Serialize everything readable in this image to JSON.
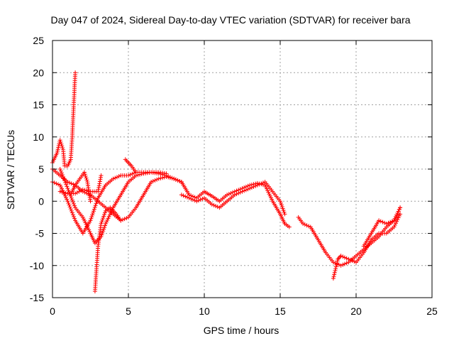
{
  "chart_data": {
    "type": "scatter",
    "title": "Day 047 of 2024, Sidereal Day-to-day VTEC variation (SDTVAR) for receiver bara",
    "xlabel": "GPS time / hours",
    "ylabel": "SDTVAR / TECUs",
    "xlim": [
      0,
      25
    ],
    "ylim": [
      -15,
      25
    ],
    "xticks": [
      0,
      5,
      10,
      15,
      20,
      25
    ],
    "yticks": [
      -15,
      -10,
      -5,
      0,
      5,
      10,
      15,
      20,
      25
    ],
    "xtick_labels": [
      "0",
      "5",
      "10",
      "15",
      "20",
      "25"
    ],
    "ytick_labels": [
      "-15",
      "-10",
      "-5",
      "0",
      "5",
      "10",
      "15",
      "20",
      "25"
    ],
    "grid": true,
    "marker": "+",
    "marker_color": "#ff0000",
    "series": [
      {
        "name": "tracks",
        "segments": [
          [
            [
              0,
              6
            ],
            [
              0.3,
              7.5
            ],
            [
              0.5,
              9.5
            ],
            [
              0.7,
              8
            ],
            [
              0.8,
              5.5
            ],
            [
              1.0,
              5.5
            ],
            [
              1.2,
              6.5
            ],
            [
              1.3,
              10
            ],
            [
              1.4,
              15
            ],
            [
              1.5,
              20
            ]
          ],
          [
            [
              0,
              5
            ],
            [
              0.5,
              4
            ],
            [
              1,
              3
            ],
            [
              1.5,
              2.5
            ],
            [
              2,
              1.5
            ],
            [
              2.5,
              1
            ],
            [
              3,
              0
            ],
            [
              3.5,
              -1
            ],
            [
              4,
              -2
            ],
            [
              4.5,
              -3
            ],
            [
              5,
              -2.5
            ],
            [
              5.5,
              -1
            ],
            [
              6,
              1
            ],
            [
              6.5,
              3
            ],
            [
              7,
              3.5
            ],
            [
              7.5,
              3.8
            ],
            [
              8,
              3.5
            ],
            [
              8.5,
              3
            ]
          ],
          [
            [
              0,
              3
            ],
            [
              0.5,
              2.5
            ],
            [
              1,
              0
            ],
            [
              1.5,
              -3
            ],
            [
              2,
              -5
            ],
            [
              2.5,
              -3
            ],
            [
              3,
              0.5
            ],
            [
              3.5,
              2.5
            ],
            [
              4,
              3.5
            ],
            [
              4.5,
              4
            ],
            [
              5,
              4
            ],
            [
              5.5,
              4.5
            ],
            [
              6,
              4.5
            ],
            [
              6.5,
              4.5
            ],
            [
              7,
              4.3
            ],
            [
              7.5,
              4
            ],
            [
              8,
              3.5
            ],
            [
              8.5,
              3
            ]
          ],
          [
            [
              0.5,
              5
            ],
            [
              1,
              2
            ],
            [
              1.5,
              -1
            ],
            [
              2,
              -2.5
            ],
            [
              2.5,
              -5
            ],
            [
              2.8,
              -6.5
            ],
            [
              3.2,
              -5.5
            ],
            [
              3.5,
              -3.5
            ],
            [
              4,
              -1
            ],
            [
              4.5,
              1
            ],
            [
              5,
              3
            ],
            [
              5.5,
              4
            ],
            [
              6,
              4.3
            ],
            [
              6.5,
              4.5
            ],
            [
              7,
              4.5
            ],
            [
              7.5,
              4.3
            ]
          ],
          [
            [
              0.5,
              1.5
            ],
            [
              1,
              1.2
            ],
            [
              1.5,
              1.2
            ],
            [
              2,
              1.8
            ],
            [
              2.5,
              1.5
            ],
            [
              3,
              1.5
            ],
            [
              3.2,
              4
            ]
          ],
          [
            [
              1.3,
              1.5
            ],
            [
              1.5,
              2.5
            ],
            [
              1.8,
              3.5
            ],
            [
              2.1,
              4.5
            ],
            [
              2.3,
              3
            ],
            [
              2.5,
              0
            ]
          ],
          [
            [
              4.5,
              -3
            ],
            [
              4.2,
              -2
            ],
            [
              3.8,
              -1
            ],
            [
              3.5,
              -1.5
            ],
            [
              3.2,
              -3.5
            ],
            [
              3,
              -7
            ],
            [
              2.8,
              -14
            ]
          ],
          [
            [
              4.8,
              6.5
            ],
            [
              5.2,
              5.5
            ],
            [
              5.5,
              4.5
            ]
          ],
          [
            [
              8.5,
              3
            ],
            [
              9,
              1
            ],
            [
              9.5,
              0.5
            ],
            [
              10,
              1.5
            ],
            [
              10.5,
              0.8
            ],
            [
              11,
              0
            ],
            [
              11.5,
              1
            ],
            [
              12,
              1.5
            ],
            [
              12.5,
              2
            ],
            [
              13,
              2.5
            ],
            [
              13.5,
              2.8
            ],
            [
              14,
              2.5
            ],
            [
              14.5,
              0
            ],
            [
              15,
              -2
            ],
            [
              15.3,
              -3.5
            ],
            [
              15.6,
              -4
            ]
          ],
          [
            [
              8.5,
              1
            ],
            [
              9,
              0.5
            ],
            [
              9.5,
              0
            ],
            [
              10,
              0.5
            ],
            [
              10.5,
              -0.5
            ],
            [
              11,
              -1
            ],
            [
              11.5,
              0
            ],
            [
              12,
              1
            ],
            [
              12.5,
              1.5
            ],
            [
              13,
              2
            ],
            [
              13.5,
              2.5
            ],
            [
              14,
              3
            ],
            [
              14.5,
              1.5
            ],
            [
              15,
              0
            ],
            [
              15.3,
              -2
            ]
          ],
          [
            [
              16.2,
              -2.5
            ],
            [
              16.5,
              -3.5
            ],
            [
              17,
              -4
            ],
            [
              17.5,
              -6
            ],
            [
              18,
              -8
            ],
            [
              18.5,
              -9.5
            ],
            [
              19,
              -10
            ],
            [
              19.5,
              -9.5
            ],
            [
              20,
              -8.5
            ],
            [
              20.5,
              -7.5
            ],
            [
              21,
              -6.5
            ],
            [
              21.5,
              -5.5
            ],
            [
              22,
              -4
            ],
            [
              22.5,
              -3
            ],
            [
              22.9,
              -1
            ]
          ],
          [
            [
              18.5,
              -12
            ],
            [
              18.8,
              -9
            ],
            [
              19,
              -8.5
            ],
            [
              19.5,
              -9
            ],
            [
              20,
              -9.5
            ],
            [
              20.5,
              -8
            ],
            [
              21,
              -6
            ],
            [
              21.5,
              -5
            ],
            [
              22,
              -5
            ],
            [
              22.5,
              -4
            ],
            [
              22.9,
              -2
            ]
          ],
          [
            [
              20.5,
              -7
            ],
            [
              21,
              -5
            ],
            [
              21.5,
              -3
            ],
            [
              22,
              -3.5
            ],
            [
              22.5,
              -3
            ],
            [
              22.9,
              -1
            ]
          ]
        ]
      }
    ]
  }
}
